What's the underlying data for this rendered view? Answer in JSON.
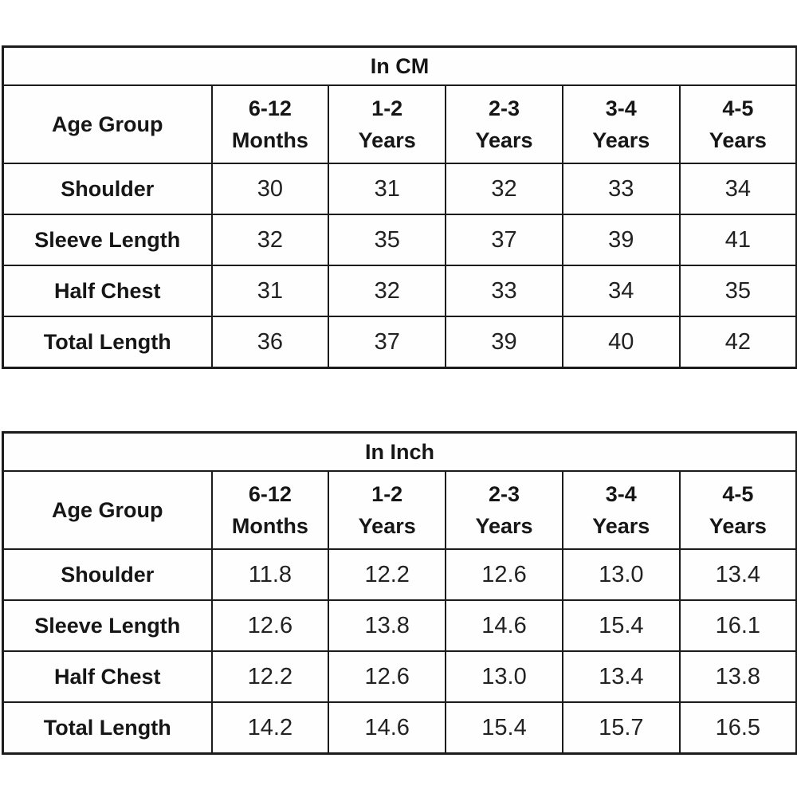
{
  "page": {
    "background_color": "#ffffff",
    "border_color": "#1b1b1b",
    "text_color": "#161616"
  },
  "tables": [
    {
      "title": "In CM",
      "header": {
        "label": "Age Group",
        "columns": [
          {
            "line1": "6-12",
            "line2": "Months"
          },
          {
            "line1": "1-2",
            "line2": "Years"
          },
          {
            "line1": "2-3",
            "line2": "Years"
          },
          {
            "line1": "3-4",
            "line2": "Years"
          },
          {
            "line1": "4-5",
            "line2": "Years"
          }
        ]
      },
      "rows": [
        {
          "label": "Shoulder",
          "values": [
            "30",
            "31",
            "32",
            "33",
            "34"
          ]
        },
        {
          "label": "Sleeve Length",
          "values": [
            "32",
            "35",
            "37",
            "39",
            "41"
          ]
        },
        {
          "label": "Half Chest",
          "values": [
            "31",
            "32",
            "33",
            "34",
            "35"
          ]
        },
        {
          "label": "Total Length",
          "values": [
            "36",
            "37",
            "39",
            "40",
            "42"
          ]
        }
      ]
    },
    {
      "title": "In Inch",
      "header": {
        "label": "Age Group",
        "columns": [
          {
            "line1": "6-12",
            "line2": "Months"
          },
          {
            "line1": "1-2",
            "line2": "Years"
          },
          {
            "line1": "2-3",
            "line2": "Years"
          },
          {
            "line1": "3-4",
            "line2": "Years"
          },
          {
            "line1": "4-5",
            "line2": "Years"
          }
        ]
      },
      "rows": [
        {
          "label": "Shoulder",
          "values": [
            "11.8",
            "12.2",
            "12.6",
            "13.0",
            "13.4"
          ]
        },
        {
          "label": "Sleeve Length",
          "values": [
            "12.6",
            "13.8",
            "14.6",
            "15.4",
            "16.1"
          ]
        },
        {
          "label": "Half Chest",
          "values": [
            "12.2",
            "12.6",
            "13.0",
            "13.4",
            "13.8"
          ]
        },
        {
          "label": "Total Length",
          "values": [
            "14.2",
            "14.6",
            "15.4",
            "15.7",
            "16.5"
          ]
        }
      ]
    }
  ],
  "chart_data": [
    {
      "type": "table",
      "title": "In CM",
      "columns": [
        "Age Group",
        "6-12 Months",
        "1-2 Years",
        "2-3 Years",
        "3-4 Years",
        "4-5 Years"
      ],
      "rows": [
        [
          "Shoulder",
          30,
          31,
          32,
          33,
          34
        ],
        [
          "Sleeve Length",
          32,
          35,
          37,
          39,
          41
        ],
        [
          "Half Chest",
          31,
          32,
          33,
          34,
          35
        ],
        [
          "Total Length",
          36,
          37,
          39,
          40,
          42
        ]
      ]
    },
    {
      "type": "table",
      "title": "In Inch",
      "columns": [
        "Age Group",
        "6-12 Months",
        "1-2 Years",
        "2-3 Years",
        "3-4 Years",
        "4-5 Years"
      ],
      "rows": [
        [
          "Shoulder",
          11.8,
          12.2,
          12.6,
          13.0,
          13.4
        ],
        [
          "Sleeve Length",
          12.6,
          13.8,
          14.6,
          15.4,
          16.1
        ],
        [
          "Half Chest",
          12.2,
          12.6,
          13.0,
          13.4,
          13.8
        ],
        [
          "Total Length",
          14.2,
          14.6,
          15.4,
          15.7,
          16.5
        ]
      ]
    }
  ]
}
